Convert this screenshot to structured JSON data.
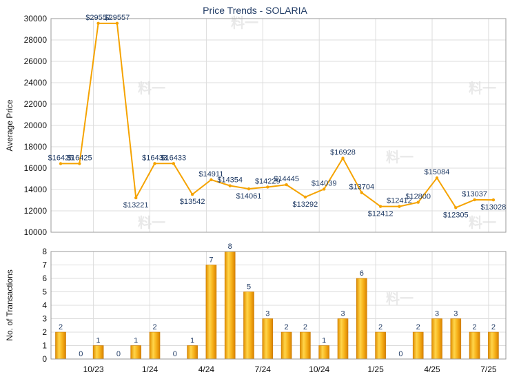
{
  "chart_data": [
    {
      "type": "line",
      "title": "Price Trends - SOLARIA",
      "ylabel": "Average Price",
      "xlabel": "",
      "ylim": [
        10000,
        30000
      ],
      "yticks": [
        "10000",
        "12000",
        "14000",
        "16000",
        "18000",
        "20000",
        "22000",
        "24000",
        "26000",
        "28000",
        "30000"
      ],
      "grid": true,
      "color": "#f5a300",
      "values": [
        16425,
        16425,
        29557,
        29557,
        13221,
        16433,
        16433,
        13542,
        14911,
        14354,
        14061,
        14229,
        14445,
        13292,
        14039,
        16928,
        13704,
        12412,
        12412,
        12800,
        15084,
        12305,
        13037,
        13028
      ],
      "labels": [
        "$16425",
        "$16425",
        "$29557",
        "$29557",
        "$13221",
        "$16433",
        "$16433",
        "$13542",
        "$14911",
        "$14354",
        "$14061",
        "$14229",
        "$14445",
        "$13292",
        "$14039",
        "$16928",
        "$13704",
        "$12412",
        "$12412",
        "$12800",
        "$15084",
        "$12305",
        "$13037",
        "$13028"
      ]
    },
    {
      "type": "bar",
      "ylabel": "No. of Transactions",
      "xlabel": "",
      "ylim": [
        0,
        8
      ],
      "yticks": [
        "0",
        "1",
        "2",
        "3",
        "4",
        "5",
        "6",
        "7",
        "8"
      ],
      "grid": true,
      "color": "#f5a300",
      "values": [
        2,
        0,
        1,
        0,
        1,
        2,
        0,
        1,
        7,
        8,
        5,
        3,
        2,
        2,
        1,
        3,
        6,
        2,
        0,
        2,
        3,
        3,
        2,
        2
      ],
      "labels": [
        "2",
        "0",
        "1",
        "0",
        "1",
        "2",
        "0",
        "1",
        "7",
        "8",
        "5",
        "3",
        "2",
        "2",
        "1",
        "3",
        "6",
        "2",
        "0",
        "2",
        "3",
        "3",
        "2",
        "2"
      ],
      "xtick_labels": [
        "10/23",
        "1/24",
        "4/24",
        "7/24",
        "10/24",
        "1/25",
        "4/25",
        "7/25"
      ]
    }
  ]
}
